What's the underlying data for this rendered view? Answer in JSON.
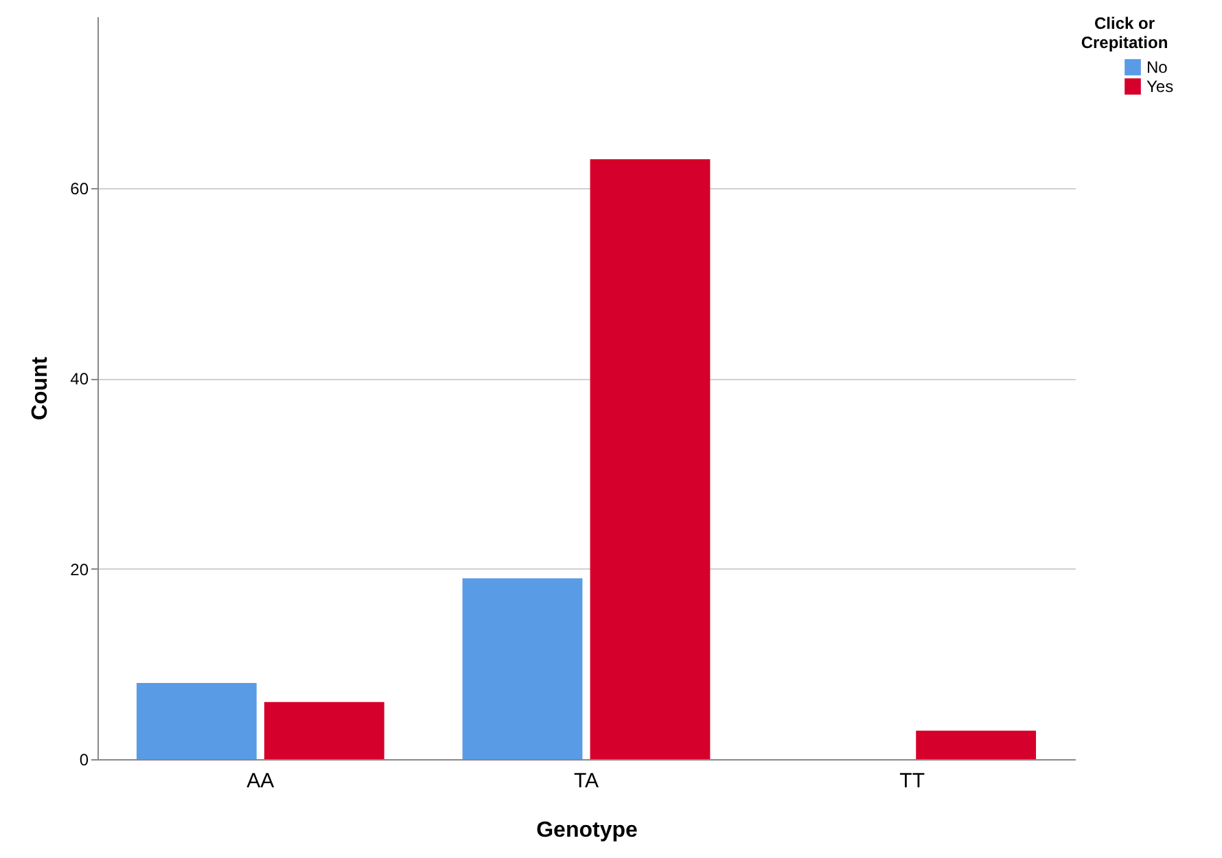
{
  "chart_data": {
    "type": "bar",
    "xlabel": "Genotype",
    "ylabel": "Count",
    "legend_title": "Click or Crepitation",
    "categories": [
      "AA",
      "TA",
      "TT"
    ],
    "series": [
      {
        "name": "No",
        "color": "#5a9be6",
        "values": [
          8,
          19,
          0
        ]
      },
      {
        "name": "Yes",
        "color": "#d5002b",
        "values": [
          6,
          63,
          3
        ]
      }
    ],
    "ylim": [
      0,
      78
    ],
    "yticks": [
      0,
      20,
      40,
      60
    ],
    "grid": "y",
    "legend": "top right"
  }
}
